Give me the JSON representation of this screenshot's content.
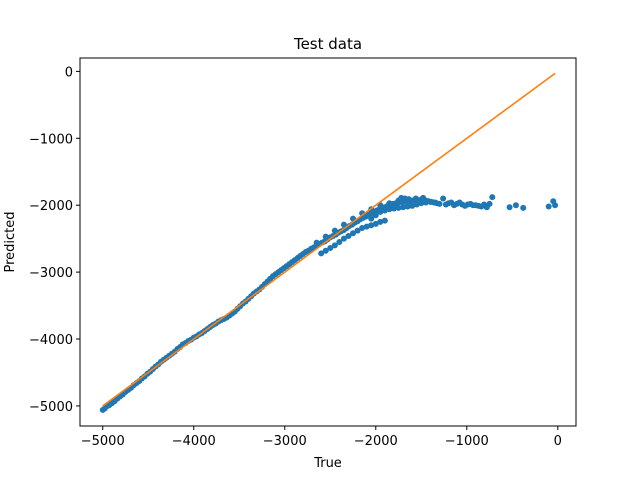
{
  "chart_data": {
    "type": "scatter",
    "title": "Test data",
    "xlabel": "True",
    "ylabel": "Predicted",
    "xlim": [
      -5250,
      200
    ],
    "ylim": [
      -5300,
      200
    ],
    "grid": false,
    "x_ticks": [
      -5000,
      -4000,
      -3000,
      -2000,
      -1000,
      0
    ],
    "y_ticks": [
      0,
      -1000,
      -2000,
      -3000,
      -4000,
      -5000
    ],
    "x_tick_labels": [
      "−5000",
      "−4000",
      "−3000",
      "−2000",
      "−1000",
      "0"
    ],
    "y_tick_labels": [
      "0",
      "−1000",
      "−2000",
      "−3000",
      "−4000",
      "−5000"
    ],
    "colors": {
      "points": "#1f77b4",
      "line": "#ff7f0e"
    },
    "series": [
      {
        "type": "scatter",
        "points": [
          [
            -5000,
            -5060
          ],
          [
            -4980,
            -5040
          ],
          [
            -4960,
            -5010
          ],
          [
            -4930,
            -4990
          ],
          [
            -4900,
            -4960
          ],
          [
            -4870,
            -4930
          ],
          [
            -4840,
            -4890
          ],
          [
            -4810,
            -4860
          ],
          [
            -4780,
            -4830
          ],
          [
            -4750,
            -4790
          ],
          [
            -4720,
            -4760
          ],
          [
            -4690,
            -4730
          ],
          [
            -4660,
            -4690
          ],
          [
            -4630,
            -4660
          ],
          [
            -4600,
            -4630
          ],
          [
            -4570,
            -4590
          ],
          [
            -4540,
            -4560
          ],
          [
            -4510,
            -4520
          ],
          [
            -4480,
            -4490
          ],
          [
            -4450,
            -4450
          ],
          [
            -4420,
            -4410
          ],
          [
            -4390,
            -4380
          ],
          [
            -4360,
            -4340
          ],
          [
            -4330,
            -4310
          ],
          [
            -4300,
            -4280
          ],
          [
            -4270,
            -4250
          ],
          [
            -4240,
            -4220
          ],
          [
            -4210,
            -4190
          ],
          [
            -4180,
            -4150
          ],
          [
            -4150,
            -4120
          ],
          [
            -4120,
            -4080
          ],
          [
            -4090,
            -4060
          ],
          [
            -4060,
            -4030
          ],
          [
            -4030,
            -4010
          ],
          [
            -4000,
            -3980
          ],
          [
            -3970,
            -3960
          ],
          [
            -3940,
            -3930
          ],
          [
            -3910,
            -3910
          ],
          [
            -3880,
            -3880
          ],
          [
            -3850,
            -3850
          ],
          [
            -3820,
            -3820
          ],
          [
            -3790,
            -3790
          ],
          [
            -3760,
            -3770
          ],
          [
            -3730,
            -3740
          ],
          [
            -3700,
            -3720
          ],
          [
            -3670,
            -3700
          ],
          [
            -3640,
            -3680
          ],
          [
            -3610,
            -3650
          ],
          [
            -3580,
            -3620
          ],
          [
            -3550,
            -3590
          ],
          [
            -3520,
            -3550
          ],
          [
            -3490,
            -3510
          ],
          [
            -3460,
            -3470
          ],
          [
            -3430,
            -3440
          ],
          [
            -3400,
            -3400
          ],
          [
            -3370,
            -3360
          ],
          [
            -3340,
            -3320
          ],
          [
            -3310,
            -3290
          ],
          [
            -3280,
            -3260
          ],
          [
            -3250,
            -3220
          ],
          [
            -3220,
            -3180
          ],
          [
            -3190,
            -3140
          ],
          [
            -3160,
            -3100
          ],
          [
            -3130,
            -3060
          ],
          [
            -3100,
            -3030
          ],
          [
            -3070,
            -3000
          ],
          [
            -3040,
            -2970
          ],
          [
            -3010,
            -2940
          ],
          [
            -2980,
            -2910
          ],
          [
            -2950,
            -2880
          ],
          [
            -2920,
            -2850
          ],
          [
            -2890,
            -2820
          ],
          [
            -2860,
            -2790
          ],
          [
            -2830,
            -2760
          ],
          [
            -2800,
            -2730
          ],
          [
            -2770,
            -2700
          ],
          [
            -2740,
            -2680
          ],
          [
            -2710,
            -2650
          ],
          [
            -2680,
            -2630
          ],
          [
            -2650,
            -2600
          ],
          [
            -2620,
            -2580
          ],
          [
            -2590,
            -2560
          ],
          [
            -2560,
            -2540
          ],
          [
            -2530,
            -2510
          ],
          [
            -2500,
            -2480
          ],
          [
            -2470,
            -2460
          ],
          [
            -2440,
            -2440
          ],
          [
            -2410,
            -2410
          ],
          [
            -2380,
            -2390
          ],
          [
            -2350,
            -2370
          ],
          [
            -2320,
            -2340
          ],
          [
            -2290,
            -2310
          ],
          [
            -2260,
            -2290
          ],
          [
            -2230,
            -2260
          ],
          [
            -2200,
            -2240
          ],
          [
            -2170,
            -2210
          ],
          [
            -2140,
            -2190
          ],
          [
            -2110,
            -2170
          ],
          [
            -2080,
            -2140
          ],
          [
            -2050,
            -2120
          ],
          [
            -2020,
            -2100
          ],
          [
            -1990,
            -2080
          ],
          [
            -1960,
            -2060
          ],
          [
            -1930,
            -2040
          ],
          [
            -1900,
            -2030
          ],
          [
            -1870,
            -2010
          ],
          [
            -1840,
            -1990
          ],
          [
            -1810,
            -1980
          ],
          [
            -1780,
            -1970
          ],
          [
            -1750,
            -1960
          ],
          [
            -1720,
            -1950
          ],
          [
            -1690,
            -1950
          ],
          [
            -1660,
            -1940
          ],
          [
            -1630,
            -1940
          ],
          [
            -1600,
            -1930
          ],
          [
            -1570,
            -1930
          ],
          [
            -1540,
            -1930
          ],
          [
            -1510,
            -1920
          ],
          [
            -1480,
            -1920
          ],
          [
            -1450,
            -1930
          ],
          [
            -1420,
            -1940
          ],
          [
            -1390,
            -1950
          ],
          [
            -1360,
            -1960
          ],
          [
            -1330,
            -1970
          ],
          [
            -1300,
            -1980
          ],
          [
            -2600,
            -2720
          ],
          [
            -2550,
            -2680
          ],
          [
            -2500,
            -2640
          ],
          [
            -2450,
            -2600
          ],
          [
            -2400,
            -2550
          ],
          [
            -2350,
            -2500
          ],
          [
            -2300,
            -2460
          ],
          [
            -2250,
            -2420
          ],
          [
            -2200,
            -2380
          ],
          [
            -2150,
            -2340
          ],
          [
            -2100,
            -2320
          ],
          [
            -2050,
            -2300
          ],
          [
            -2000,
            -2280
          ],
          [
            -1950,
            -2250
          ],
          [
            -1900,
            -2230
          ],
          [
            -2650,
            -2560
          ],
          [
            -2550,
            -2470
          ],
          [
            -2450,
            -2380
          ],
          [
            -2350,
            -2290
          ],
          [
            -2250,
            -2200
          ],
          [
            -2150,
            -2120
          ],
          [
            -2050,
            -2060
          ],
          [
            -1950,
            -2000
          ],
          [
            -1850,
            -1970
          ],
          [
            -1750,
            -1930
          ],
          [
            -2050,
            -2200
          ],
          [
            -2000,
            -2150
          ],
          [
            -1950,
            -2100
          ],
          [
            -1900,
            -2080
          ],
          [
            -1850,
            -2060
          ],
          [
            -1800,
            -2050
          ],
          [
            -1750,
            -2040
          ],
          [
            -1700,
            -2030
          ],
          [
            -1650,
            -2020
          ],
          [
            -1600,
            -2010
          ],
          [
            -1550,
            -1990
          ],
          [
            -1500,
            -1970
          ],
          [
            -1450,
            -1960
          ],
          [
            -1400,
            -1950
          ],
          [
            -1350,
            -1960
          ],
          [
            -1720,
            -1890
          ],
          [
            -1680,
            -1900
          ],
          [
            -1640,
            -1910
          ],
          [
            -1560,
            -1900
          ],
          [
            -1480,
            -1890
          ],
          [
            -1260,
            -1900
          ],
          [
            -1230,
            -1990
          ],
          [
            -1200,
            -1970
          ],
          [
            -1170,
            -1960
          ],
          [
            -1140,
            -2000
          ],
          [
            -1110,
            -1980
          ],
          [
            -1080,
            -1960
          ],
          [
            -1050,
            -1990
          ],
          [
            -1020,
            -2010
          ],
          [
            -990,
            -1990
          ],
          [
            -960,
            -1980
          ],
          [
            -930,
            -2000
          ],
          [
            -900,
            -2000
          ],
          [
            -870,
            -2010
          ],
          [
            -840,
            -2020
          ],
          [
            -810,
            -1990
          ],
          [
            -780,
            -2030
          ],
          [
            -750,
            -1980
          ],
          [
            -720,
            -1880
          ],
          [
            -530,
            -2030
          ],
          [
            -460,
            -2000
          ],
          [
            -380,
            -2040
          ],
          [
            -100,
            -2020
          ],
          [
            -50,
            -1940
          ],
          [
            -30,
            -2000
          ]
        ]
      },
      {
        "type": "line",
        "points": [
          [
            -5000,
            -5000
          ],
          [
            -30,
            -30
          ]
        ]
      }
    ]
  }
}
